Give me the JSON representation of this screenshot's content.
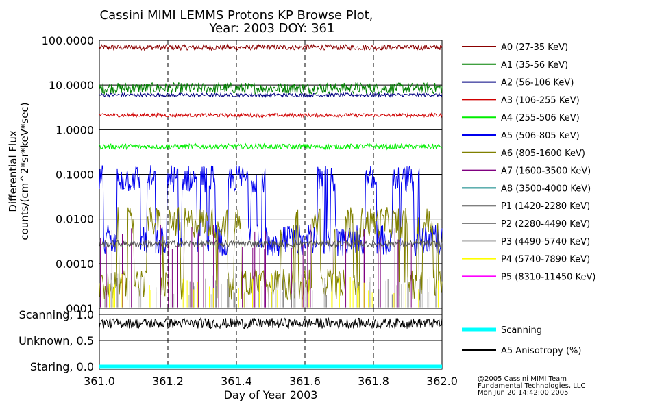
{
  "chart_data": {
    "type": "line",
    "title": "Cassini MIMI LEMMS Protons KP Browse Plot,",
    "subtitle": "Year: 2003 DOY: 361",
    "xlabel": "Day of Year 2003",
    "ylabel": "Differential Flux",
    "ylabel2": "counts/(cm^2*sr*keV*sec)",
    "xlim": [
      361.0,
      362.0
    ],
    "x_ticks": [
      "361.0",
      "361.2",
      "361.4",
      "361.6",
      "361.8",
      "362.0"
    ],
    "x_tick_values": [
      361.0,
      361.2,
      361.4,
      361.6,
      361.8,
      362.0
    ],
    "y_scale": "log",
    "ylim": [
      0.0001,
      100.0
    ],
    "y_ticks": [
      "100.0000",
      "10.0000",
      "1.0000",
      "0.1000",
      "0.0100",
      "0.0010",
      ".0001"
    ],
    "y_tick_values": [
      100,
      10,
      1,
      0.1,
      0.01,
      0.001,
      0.0001
    ],
    "series": [
      {
        "name": "A0 (27-35 KeV)",
        "color": "#8b0000",
        "level": 70,
        "noise": 0.12,
        "style": "noise"
      },
      {
        "name": "A1 (35-56 KeV)",
        "color": "#008000",
        "level": 8.5,
        "noise": 0.25,
        "style": "noise"
      },
      {
        "name": "A2 (56-106 KeV)",
        "color": "#000080",
        "level": 6.0,
        "noise": 0.08,
        "style": "noise"
      },
      {
        "name": "A3 (106-255 KeV)",
        "color": "#d00000",
        "level": 2.1,
        "noise": 0.08,
        "style": "noise"
      },
      {
        "name": "A4 (255-506 KeV)",
        "color": "#00ee00",
        "level": 0.42,
        "noise": 0.12,
        "style": "noise"
      },
      {
        "name": "A5 (506-805 KeV)",
        "color": "#0000ee",
        "level": 0.06,
        "noise": 0.9,
        "style": "spiky"
      },
      {
        "name": "A6 (805-1600 KeV)",
        "color": "#808000",
        "level": 0.006,
        "noise": 1.0,
        "style": "spiky"
      },
      {
        "name": "A7 (1600-3500 KeV)",
        "color": "#800080",
        "level": 0.002,
        "noise": 0.5,
        "style": "sparse"
      },
      {
        "name": "A8 (3500-4000 KeV)",
        "color": "#008080",
        "level": null,
        "noise": 0,
        "style": "none"
      },
      {
        "name": "P1 (1420-2280 KeV)",
        "color": "#555555",
        "level": 0.0028,
        "noise": 0.15,
        "style": "noise"
      },
      {
        "name": "P2 (2280-4490 KeV)",
        "color": "#808080",
        "level": 0.0002,
        "noise": 0.4,
        "style": "sparse"
      },
      {
        "name": "P3 (4490-5740 KeV)",
        "color": "#c0c0c0",
        "level": 0.0002,
        "noise": 0.4,
        "style": "sparse"
      },
      {
        "name": "P4 (5740-7890 KeV)",
        "color": "#ffff00",
        "level": 0.0002,
        "noise": 0.4,
        "style": "sparse"
      },
      {
        "name": "P5 (8310-11450 KeV)",
        "color": "#ff00ff",
        "level": null,
        "noise": 0,
        "style": "none"
      }
    ],
    "lower_panel": {
      "y_labels": [
        "Scanning, 1.0",
        "Unknown, 0.5",
        "Staring, 0.0"
      ],
      "y_tick_values": [
        1.0,
        0.5,
        0.0
      ],
      "ylim": [
        0.0,
        1.0
      ],
      "series": [
        {
          "name": "Scanning",
          "color": "#00ffff",
          "value": 0.0
        },
        {
          "name": "A5 Anisotropy (%)",
          "color": "#000000",
          "value": 0.83
        }
      ]
    },
    "credits": [
      "@2005 Cassini MIMI Team",
      "Fundamental Technologies, LLC",
      "Mon Jun 20 14:42:00 2005"
    ]
  }
}
